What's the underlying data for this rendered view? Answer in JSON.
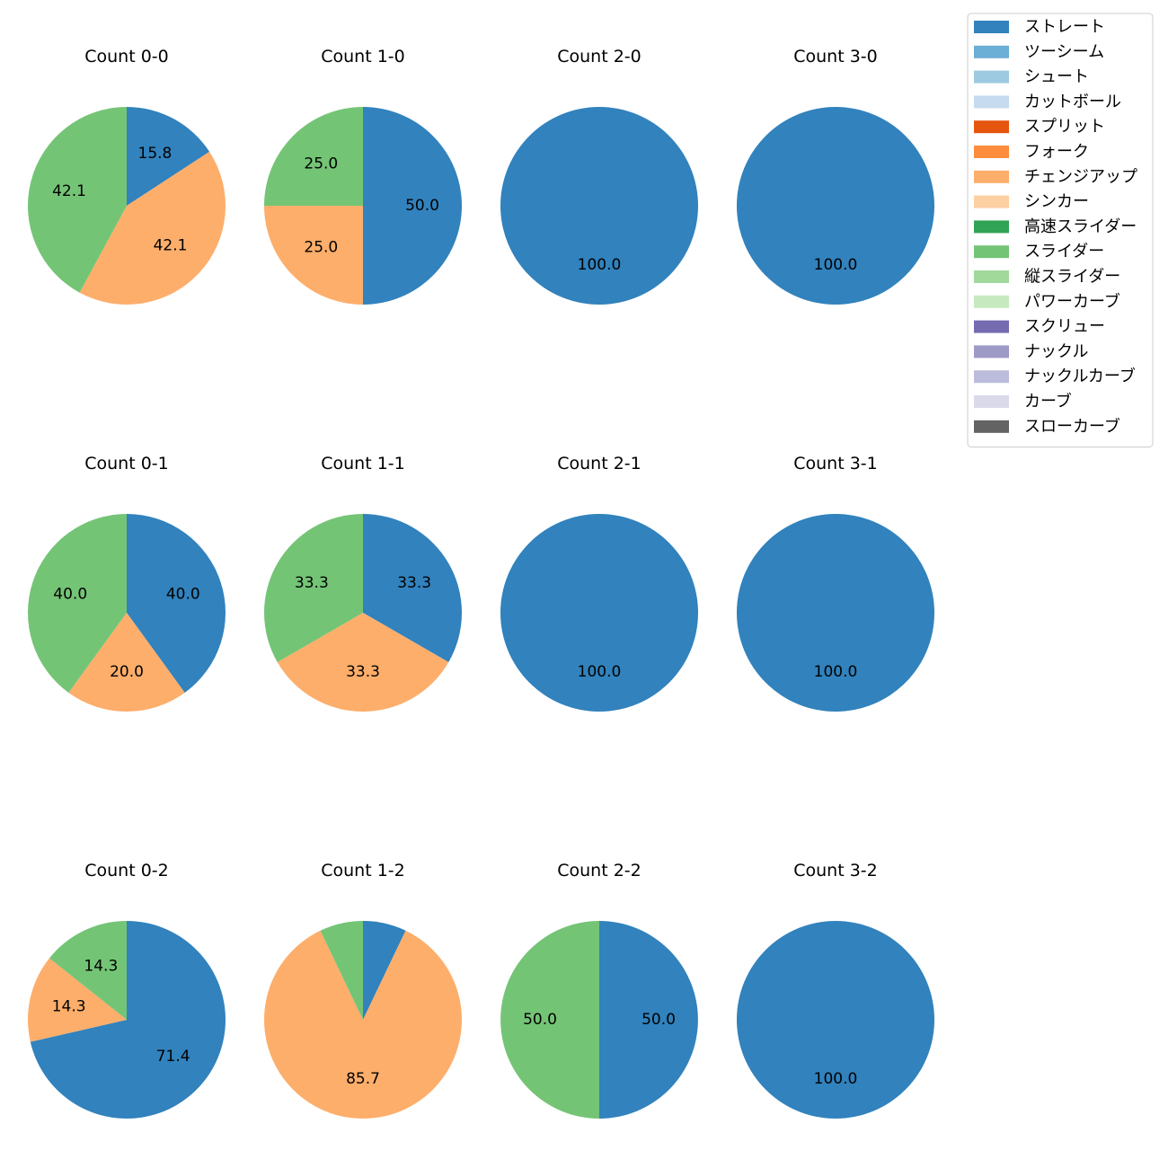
{
  "chart_data": {
    "type": "pie",
    "legend": {
      "placement": "top-right",
      "entries": [
        {
          "name": "ストレート",
          "color": "#3182bd"
        },
        {
          "name": "ツーシーム",
          "color": "#6baed6"
        },
        {
          "name": "シュート",
          "color": "#9ecae1"
        },
        {
          "name": "カットボール",
          "color": "#c6dbef"
        },
        {
          "name": "スプリット",
          "color": "#e6550d"
        },
        {
          "name": "フォーク",
          "color": "#fd8d3c"
        },
        {
          "name": "チェンジアップ",
          "color": "#fdae6b"
        },
        {
          "name": "シンカー",
          "color": "#fdd0a2"
        },
        {
          "name": "高速スライダー",
          "color": "#31a354"
        },
        {
          "name": "スライダー",
          "color": "#74c476"
        },
        {
          "name": "縦スライダー",
          "color": "#a1d99b"
        },
        {
          "name": "パワーカーブ",
          "color": "#c7e9c0"
        },
        {
          "name": "スクリュー",
          "color": "#756bb1"
        },
        {
          "name": "ナックル",
          "color": "#9e9ac8"
        },
        {
          "name": "ナックルカーブ",
          "color": "#bcbddc"
        },
        {
          "name": "カーブ",
          "color": "#dadaeb"
        },
        {
          "name": "スローカーブ",
          "color": "#636363"
        }
      ]
    },
    "charts": [
      {
        "title": "Count 0-0",
        "slices": [
          {
            "pitch": "ストレート",
            "value": 15.8,
            "label": "15.8"
          },
          {
            "pitch": "チェンジアップ",
            "value": 42.1,
            "label": "42.1"
          },
          {
            "pitch": "スライダー",
            "value": 42.1,
            "label": "42.1"
          }
        ]
      },
      {
        "title": "Count 1-0",
        "slices": [
          {
            "pitch": "ストレート",
            "value": 50.0,
            "label": "50.0"
          },
          {
            "pitch": "チェンジアップ",
            "value": 25.0,
            "label": "25.0"
          },
          {
            "pitch": "スライダー",
            "value": 25.0,
            "label": "25.0"
          }
        ]
      },
      {
        "title": "Count 2-0",
        "slices": [
          {
            "pitch": "ストレート",
            "value": 100.0,
            "label": "100.0"
          }
        ]
      },
      {
        "title": "Count 3-0",
        "slices": [
          {
            "pitch": "ストレート",
            "value": 100.0,
            "label": "100.0"
          }
        ]
      },
      {
        "title": "Count 0-1",
        "slices": [
          {
            "pitch": "ストレート",
            "value": 40.0,
            "label": "40.0"
          },
          {
            "pitch": "チェンジアップ",
            "value": 20.0,
            "label": "20.0"
          },
          {
            "pitch": "スライダー",
            "value": 40.0,
            "label": "40.0"
          }
        ]
      },
      {
        "title": "Count 1-1",
        "slices": [
          {
            "pitch": "ストレート",
            "value": 33.3,
            "label": "33.3"
          },
          {
            "pitch": "チェンジアップ",
            "value": 33.3,
            "label": "33.3"
          },
          {
            "pitch": "スライダー",
            "value": 33.3,
            "label": "33.3"
          }
        ]
      },
      {
        "title": "Count 2-1",
        "slices": [
          {
            "pitch": "ストレート",
            "value": 100.0,
            "label": "100.0"
          }
        ]
      },
      {
        "title": "Count 3-1",
        "slices": [
          {
            "pitch": "ストレート",
            "value": 100.0,
            "label": "100.0"
          }
        ]
      },
      {
        "title": "Count 0-2",
        "slices": [
          {
            "pitch": "ストレート",
            "value": 71.4,
            "label": "71.4"
          },
          {
            "pitch": "チェンジアップ",
            "value": 14.3,
            "label": "14.3"
          },
          {
            "pitch": "スライダー",
            "value": 14.3,
            "label": "14.3"
          }
        ]
      },
      {
        "title": "Count 1-2",
        "slices": [
          {
            "pitch": "ストレート",
            "value": 7.1,
            "label": ""
          },
          {
            "pitch": "チェンジアップ",
            "value": 85.7,
            "label": "85.7"
          },
          {
            "pitch": "スライダー",
            "value": 7.1,
            "label": ""
          }
        ]
      },
      {
        "title": "Count 2-2",
        "slices": [
          {
            "pitch": "ストレート",
            "value": 50.0,
            "label": "50.0"
          },
          {
            "pitch": "スライダー",
            "value": 50.0,
            "label": "50.0"
          }
        ]
      },
      {
        "title": "Count 3-2",
        "slices": [
          {
            "pitch": "ストレート",
            "value": 100.0,
            "label": "100.0"
          }
        ]
      }
    ]
  }
}
